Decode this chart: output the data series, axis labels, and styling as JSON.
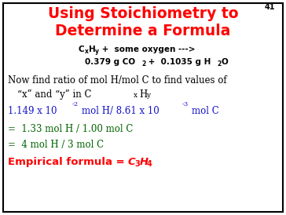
{
  "title_line1": "Using Stoichiometry to",
  "title_line2": "Determine a Formula",
  "title_color": "#FF0000",
  "slide_number": "41",
  "bg_color": "#FFFFFF",
  "body_color": "#000000",
  "blue_color": "#1414CC",
  "green_color": "#006400",
  "red_color": "#FF0000"
}
